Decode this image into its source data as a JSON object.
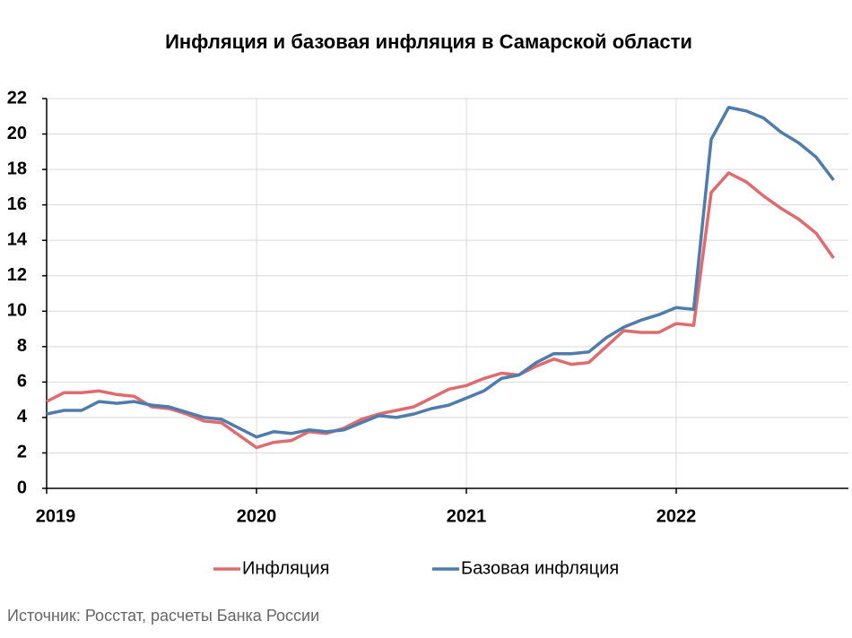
{
  "chart_data": {
    "type": "line",
    "title": "Инфляция и базовая инфляция в Самарской области",
    "source": "Источник: Росстат, расчеты Банка России",
    "categories": [
      "2019",
      null,
      null,
      null,
      null,
      null,
      null,
      null,
      null,
      null,
      null,
      null,
      "2020",
      null,
      null,
      null,
      null,
      null,
      null,
      null,
      null,
      null,
      null,
      null,
      "2021",
      null,
      null,
      null,
      null,
      null,
      null,
      null,
      null,
      null,
      null,
      null,
      "2022",
      null,
      null,
      null,
      null,
      null,
      null,
      null,
      null,
      null
    ],
    "series": [
      {
        "name": "Инфляция",
        "color": "#e06b6f",
        "values": [
          4.9,
          5.4,
          5.4,
          5.5,
          5.3,
          5.2,
          4.6,
          4.5,
          4.2,
          3.8,
          3.7,
          3.0,
          2.3,
          2.6,
          2.7,
          3.2,
          3.1,
          3.4,
          3.9,
          4.2,
          4.4,
          4.6,
          5.1,
          5.6,
          5.8,
          6.2,
          6.5,
          6.4,
          6.9,
          7.3,
          7.0,
          7.1,
          8.0,
          8.9,
          8.8,
          8.8,
          9.3,
          9.2,
          16.7,
          17.8,
          17.3,
          16.5,
          15.8,
          15.2,
          14.4,
          13.0
        ]
      },
      {
        "name": "Базовая инфляция",
        "color": "#4f7bad",
        "values": [
          4.2,
          4.4,
          4.4,
          4.9,
          4.8,
          4.9,
          4.7,
          4.6,
          4.3,
          4.0,
          3.9,
          3.4,
          2.9,
          3.2,
          3.1,
          3.3,
          3.2,
          3.3,
          3.7,
          4.1,
          4.0,
          4.2,
          4.5,
          4.7,
          5.1,
          5.5,
          6.2,
          6.4,
          7.1,
          7.6,
          7.6,
          7.7,
          8.5,
          9.1,
          9.5,
          9.8,
          10.2,
          10.1,
          19.7,
          21.5,
          21.3,
          20.9,
          20.1,
          19.5,
          18.7,
          17.4
        ]
      }
    ],
    "ylim": [
      0,
      22
    ],
    "yticks": [
      0,
      2,
      4,
      6,
      8,
      10,
      12,
      14,
      16,
      18,
      20,
      22
    ],
    "grid": true,
    "legend": "bottom"
  }
}
